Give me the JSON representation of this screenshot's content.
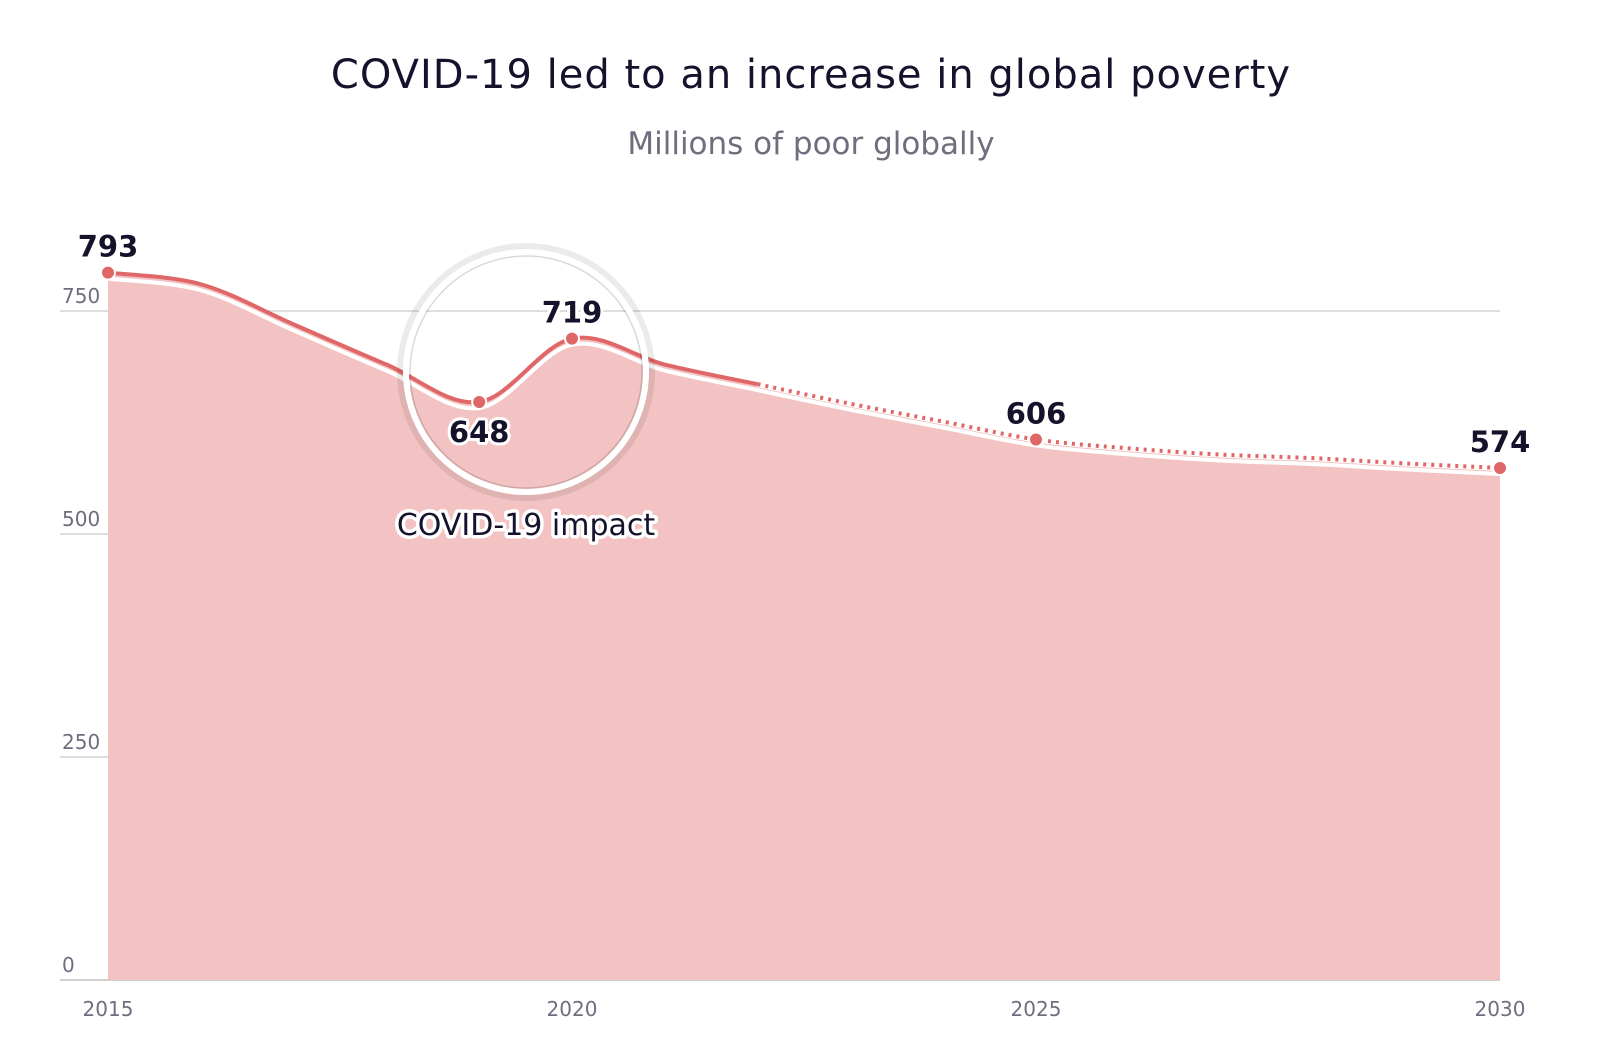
{
  "chart_data": {
    "type": "area",
    "title": "COVID-19 led to an increase in global poverty",
    "subtitle": "Millions of poor globally",
    "xlabel": "",
    "ylabel": "",
    "ylim": [
      0,
      800
    ],
    "xlim": [
      2015,
      2030
    ],
    "grid": true,
    "y_ticks": [
      "0",
      "250",
      "500",
      "750"
    ],
    "x_ticks": [
      "2015",
      "2020",
      "2025",
      "2030"
    ],
    "projection_start": 2022,
    "x": [
      2015,
      2016,
      2017,
      2018,
      2019,
      2020,
      2021,
      2022,
      2023,
      2024,
      2025,
      2026,
      2027,
      2028,
      2029,
      2030
    ],
    "values": [
      793,
      780,
      735,
      690,
      648,
      719,
      690,
      668,
      646,
      626,
      606,
      596,
      589,
      585,
      579,
      574
    ],
    "data_labels": [
      {
        "x": 2015,
        "value": 793,
        "text": "793"
      },
      {
        "x": 2019,
        "value": 648,
        "text": "648"
      },
      {
        "x": 2020,
        "value": 719,
        "text": "719"
      },
      {
        "x": 2025,
        "value": 606,
        "text": "606"
      },
      {
        "x": 2030,
        "value": 574,
        "text": "574"
      }
    ],
    "annotation": "COVID-19 impact",
    "colors": {
      "line": "#e06767",
      "area": "#f3c3c3",
      "text": "#14132b"
    }
  }
}
